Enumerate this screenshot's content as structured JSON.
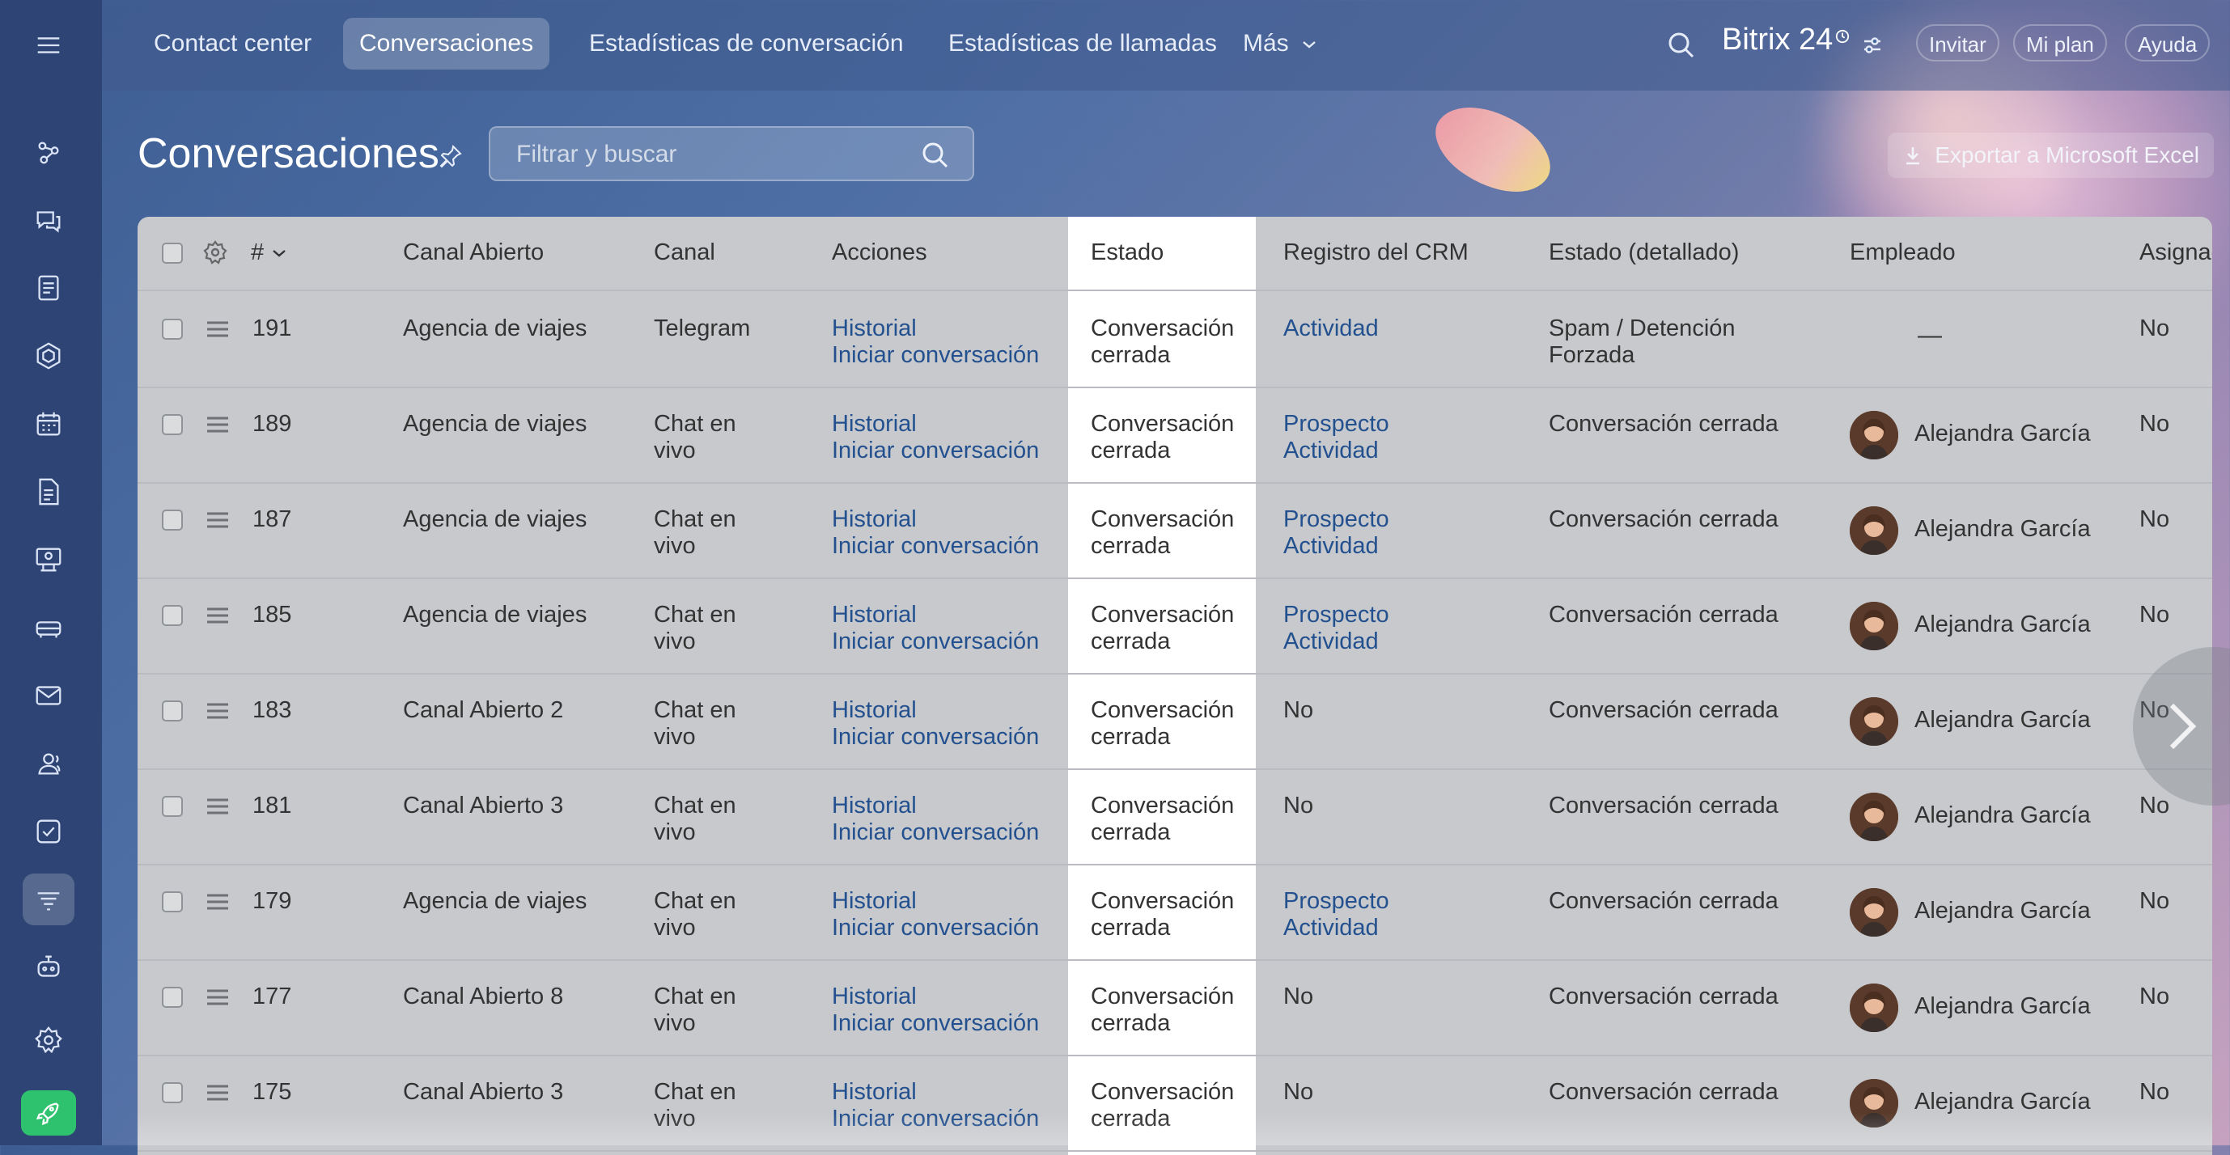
{
  "topnav": {
    "items": [
      {
        "label": "Contact center",
        "active": false
      },
      {
        "label": "Conversaciones",
        "active": true
      },
      {
        "label": "Estadísticas de conversación",
        "active": false
      },
      {
        "label": "Estadísticas de llamadas",
        "active": false
      },
      {
        "label": "Más",
        "active": false
      }
    ],
    "brand": "Bitrix 24",
    "invite": "Invitar",
    "plan": "Mi plan",
    "help": "Ayuda"
  },
  "sidebar": {
    "icons": [
      "menu-icon",
      "crm-icon",
      "chat-icon",
      "tasks-icon",
      "sites-icon",
      "calendar-icon",
      "documents-icon",
      "training-icon",
      "booking-icon",
      "mail-icon",
      "contacts-icon",
      "checklist-icon",
      "contact-center-icon",
      "copilot-icon",
      "settings-icon",
      "rocket-icon"
    ]
  },
  "page": {
    "title": "Conversaciones",
    "filter_placeholder": "Filtrar y buscar",
    "export": "Exportar a Microsoft Excel"
  },
  "table": {
    "headers": {
      "id": "#",
      "canal_abierto": "Canal Abierto",
      "canal": "Canal",
      "acciones": "Acciones",
      "estado": "Estado",
      "crm": "Registro del CRM",
      "estado_det": "Estado (detallado)",
      "empleado": "Empleado",
      "asignado": "Asignado"
    },
    "rows": [
      {
        "id": "191",
        "canal_abierto": "Agencia de viajes",
        "canal": "Telegram",
        "historial": "Historial",
        "iniciar": "Iniciar conversación",
        "estado": "Conversación cerrada",
        "crm1": "Actividad",
        "crm2": "",
        "crm_is_link": true,
        "estado_det": "Spam / Detención Forzada",
        "empleado": "",
        "asignado": "No"
      },
      {
        "id": "189",
        "canal_abierto": "Agencia de viajes",
        "canal": "Chat en vivo",
        "historial": "Historial",
        "iniciar": "Iniciar conversación",
        "estado": "Conversación cerrada",
        "crm1": "Prospecto",
        "crm2": "Actividad",
        "crm_is_link": true,
        "estado_det": "Conversación cerrada",
        "empleado": "Alejandra García",
        "asignado": "No"
      },
      {
        "id": "187",
        "canal_abierto": "Agencia de viajes",
        "canal": "Chat en vivo",
        "historial": "Historial",
        "iniciar": "Iniciar conversación",
        "estado": "Conversación cerrada",
        "crm1": "Prospecto",
        "crm2": "Actividad",
        "crm_is_link": true,
        "estado_det": "Conversación cerrada",
        "empleado": "Alejandra García",
        "asignado": "No"
      },
      {
        "id": "185",
        "canal_abierto": "Agencia de viajes",
        "canal": "Chat en vivo",
        "historial": "Historial",
        "iniciar": "Iniciar conversación",
        "estado": "Conversación cerrada",
        "crm1": "Prospecto",
        "crm2": "Actividad",
        "crm_is_link": true,
        "estado_det": "Conversación cerrada",
        "empleado": "Alejandra García",
        "asignado": "No"
      },
      {
        "id": "183",
        "canal_abierto": "Canal Abierto 2",
        "canal": "Chat en vivo",
        "historial": "Historial",
        "iniciar": "Iniciar conversación",
        "estado": "Conversación cerrada",
        "crm1": "No",
        "crm2": "",
        "crm_is_link": false,
        "estado_det": "Conversación cerrada",
        "empleado": "Alejandra García",
        "asignado": "No"
      },
      {
        "id": "181",
        "canal_abierto": "Canal Abierto 3",
        "canal": "Chat en vivo",
        "historial": "Historial",
        "iniciar": "Iniciar conversación",
        "estado": "Conversación cerrada",
        "crm1": "No",
        "crm2": "",
        "crm_is_link": false,
        "estado_det": "Conversación cerrada",
        "empleado": "Alejandra García",
        "asignado": "No"
      },
      {
        "id": "179",
        "canal_abierto": "Agencia de viajes",
        "canal": "Chat en vivo",
        "historial": "Historial",
        "iniciar": "Iniciar conversación",
        "estado": "Conversación cerrada",
        "crm1": "Prospecto",
        "crm2": "Actividad",
        "crm_is_link": true,
        "estado_det": "Conversación cerrada",
        "empleado": "Alejandra García",
        "asignado": "No"
      },
      {
        "id": "177",
        "canal_abierto": "Canal Abierto 8",
        "canal": "Chat en vivo",
        "historial": "Historial",
        "iniciar": "Iniciar conversación",
        "estado": "Conversación cerrada",
        "crm1": "No",
        "crm2": "",
        "crm_is_link": false,
        "estado_det": "Conversación cerrada",
        "empleado": "Alejandra García",
        "asignado": "No"
      },
      {
        "id": "175",
        "canal_abierto": "Canal Abierto 3",
        "canal": "Chat en vivo",
        "historial": "Historial",
        "iniciar": "Iniciar conversación",
        "estado": "Conversación cerrada",
        "crm1": "No",
        "crm2": "",
        "crm_is_link": false,
        "estado_det": "Conversación cerrada",
        "empleado": "Alejandra García",
        "asignado": "No"
      }
    ]
  }
}
